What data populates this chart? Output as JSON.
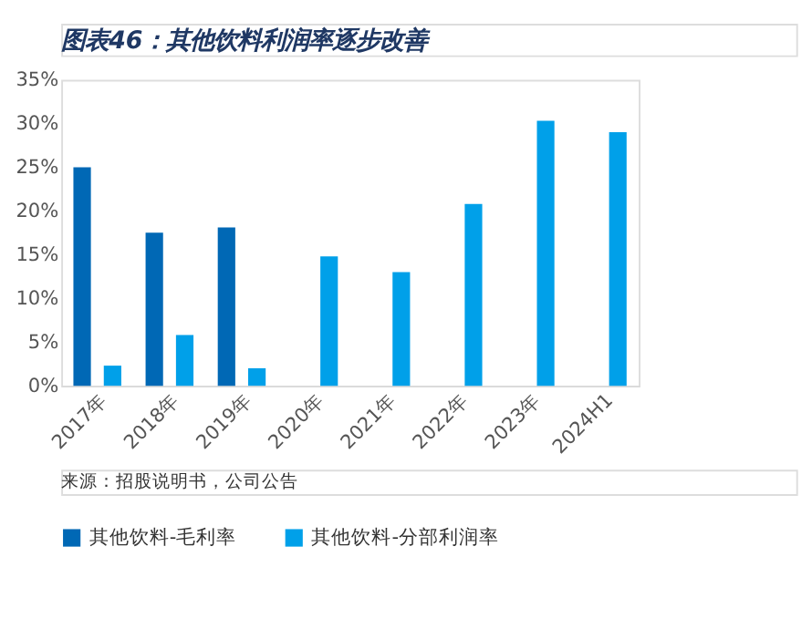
{
  "chart_data": {
    "type": "bar",
    "title": "图表46：其他饮料利润率逐步改善",
    "categories": [
      "2017年",
      "2018年",
      "2019年",
      "2020年",
      "2021年",
      "2022年",
      "2023年",
      "2024H1"
    ],
    "series": [
      {
        "name": "其他饮料-毛利率",
        "color": "#0068b5",
        "values": [
          25.0,
          17.5,
          18.1,
          null,
          null,
          null,
          null,
          null
        ]
      },
      {
        "name": "其他饮料-分部利润率",
        "color": "#00a0e9",
        "values": [
          2.3,
          5.8,
          2.0,
          14.8,
          13.0,
          20.8,
          30.3,
          29.0
        ]
      }
    ],
    "ylim": [
      0,
      35
    ],
    "yticks": [
      {
        "value": 0,
        "label": "0%"
      },
      {
        "value": 5,
        "label": "5%"
      },
      {
        "value": 10,
        "label": "10%"
      },
      {
        "value": 15,
        "label": "15%"
      },
      {
        "value": 20,
        "label": "20%"
      },
      {
        "value": 25,
        "label": "25%"
      },
      {
        "value": 30,
        "label": "30%"
      },
      {
        "value": 35,
        "label": "35%"
      }
    ],
    "grid": false,
    "legend": "bottom",
    "annotations": [
      "来源：招股说明书，公司公告"
    ]
  }
}
